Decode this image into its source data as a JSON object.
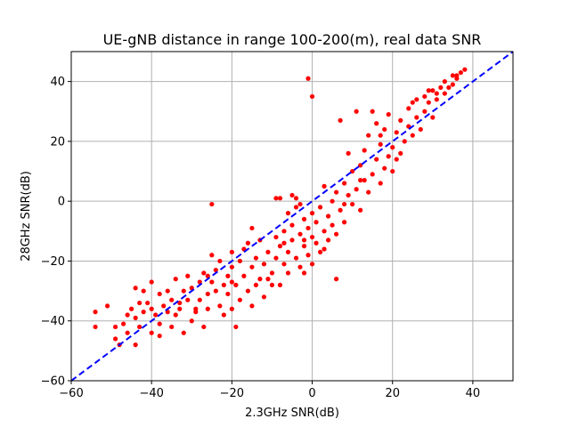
{
  "chart_data": {
    "type": "scatter",
    "title": "UE-gNB distance in range 100-200(m), real data SNR",
    "xlabel": "2.3GHz SNR(dB)",
    "ylabel": "28GHz SNR(dB)",
    "xlim": [
      -60,
      50
    ],
    "ylim": [
      -60,
      50
    ],
    "xticks": [
      -60,
      -40,
      -20,
      0,
      20,
      40
    ],
    "yticks": [
      -60,
      -40,
      -20,
      0,
      20,
      40
    ],
    "grid": true,
    "colors": {
      "points": "#ff0000",
      "reference_line": "#0000ff",
      "grid": "#b0b0b0"
    },
    "reference_line": {
      "style": "dashed",
      "from": [
        -60,
        -60
      ],
      "to": [
        50,
        50
      ]
    },
    "series": [
      {
        "marker": "circle",
        "color": "#ff0000",
        "points": [
          [
            -54,
            -37
          ],
          [
            -54,
            -42
          ],
          [
            -51,
            -35
          ],
          [
            -49,
            -46
          ],
          [
            -49,
            -42
          ],
          [
            -48,
            -48
          ],
          [
            -47,
            -41
          ],
          [
            -46,
            -44
          ],
          [
            -46,
            -38
          ],
          [
            -45,
            -36
          ],
          [
            -44,
            -39
          ],
          [
            -44,
            -48
          ],
          [
            -44,
            -29
          ],
          [
            -43,
            -42
          ],
          [
            -42,
            -37
          ],
          [
            -42,
            -30
          ],
          [
            -41,
            -34
          ],
          [
            -40,
            -44
          ],
          [
            -40,
            -36
          ],
          [
            -40,
            -27
          ],
          [
            -39,
            -38
          ],
          [
            -38,
            -31
          ],
          [
            -38,
            -41
          ],
          [
            -37,
            -35
          ],
          [
            -36,
            -37
          ],
          [
            -36,
            -30
          ],
          [
            -35,
            -42
          ],
          [
            -35,
            -33
          ],
          [
            -34,
            -26
          ],
          [
            -34,
            -38
          ],
          [
            -33,
            -36
          ],
          [
            -32,
            -30
          ],
          [
            -32,
            -44
          ],
          [
            -31,
            -25
          ],
          [
            -31,
            -33
          ],
          [
            -30,
            -29
          ],
          [
            -30,
            -40
          ],
          [
            -29,
            -37
          ],
          [
            -28,
            -27
          ],
          [
            -28,
            -33
          ],
          [
            -27,
            -24
          ],
          [
            -27,
            -42
          ],
          [
            -26,
            -31
          ],
          [
            -26,
            -36
          ],
          [
            -25,
            -27
          ],
          [
            -25,
            -18
          ],
          [
            -25,
            -1
          ],
          [
            -24,
            -30
          ],
          [
            -24,
            -23
          ],
          [
            -23,
            -35
          ],
          [
            -23,
            -20
          ],
          [
            -22,
            -28
          ],
          [
            -22,
            -38
          ],
          [
            -21,
            -25
          ],
          [
            -21,
            -31
          ],
          [
            -20,
            -17
          ],
          [
            -20,
            -22
          ],
          [
            -20,
            -36
          ],
          [
            -19,
            -28
          ],
          [
            -18,
            -20
          ],
          [
            -18,
            -33
          ],
          [
            -17,
            -16
          ],
          [
            -17,
            -25
          ],
          [
            -16,
            -14
          ],
          [
            -16,
            -30
          ],
          [
            -15,
            -22
          ],
          [
            -15,
            -35
          ],
          [
            -14,
            -19
          ],
          [
            -13,
            -26
          ],
          [
            -13,
            -13
          ],
          [
            -12,
            -21
          ],
          [
            -12,
            -32
          ],
          [
            -11,
            -17
          ],
          [
            -10,
            -24
          ],
          [
            -10,
            -28
          ],
          [
            -9,
            -12
          ],
          [
            -9,
            -19
          ],
          [
            -8,
            -15
          ],
          [
            -8,
            -28
          ],
          [
            -8,
            1
          ],
          [
            -7,
            -21
          ],
          [
            -7,
            -10
          ],
          [
            -6,
            -17
          ],
          [
            -6,
            -24
          ],
          [
            -5,
            -8
          ],
          [
            -5,
            -13
          ],
          [
            -4,
            -19
          ],
          [
            -4,
            1
          ],
          [
            -3,
            -11
          ],
          [
            -3,
            -22
          ],
          [
            -2,
            -6
          ],
          [
            -2,
            -15
          ],
          [
            -1,
            -18
          ],
          [
            -1,
            -9
          ],
          [
            0,
            -4
          ],
          [
            0,
            -12
          ],
          [
            0,
            -21
          ],
          [
            0,
            35
          ],
          [
            1,
            -14
          ],
          [
            1,
            -7
          ],
          [
            2,
            -2
          ],
          [
            2,
            -17
          ],
          [
            3,
            -10
          ],
          [
            3,
            5
          ],
          [
            4,
            -5
          ],
          [
            4,
            -13
          ],
          [
            5,
            0
          ],
          [
            5,
            -8
          ],
          [
            6,
            3
          ],
          [
            6,
            -11
          ],
          [
            7,
            -3
          ],
          [
            8,
            6
          ],
          [
            8,
            -7
          ],
          [
            9,
            2
          ],
          [
            9,
            16
          ],
          [
            10,
            -1
          ],
          [
            10,
            10
          ],
          [
            11,
            4
          ],
          [
            12,
            -3
          ],
          [
            12,
            12
          ],
          [
            13,
            7
          ],
          [
            13,
            17
          ],
          [
            14,
            3
          ],
          [
            14,
            22
          ],
          [
            15,
            9
          ],
          [
            16,
            14
          ],
          [
            16,
            26
          ],
          [
            17,
            6
          ],
          [
            17,
            19
          ],
          [
            18,
            11
          ],
          [
            18,
            24
          ],
          [
            19,
            15
          ],
          [
            19,
            29
          ],
          [
            20,
            18
          ],
          [
            20,
            10
          ],
          [
            21,
            23
          ],
          [
            22,
            16
          ],
          [
            22,
            27
          ],
          [
            23,
            20
          ],
          [
            24,
            25
          ],
          [
            24,
            31
          ],
          [
            25,
            22
          ],
          [
            26,
            28
          ],
          [
            26,
            34
          ],
          [
            27,
            24
          ],
          [
            28,
            30
          ],
          [
            28,
            35
          ],
          [
            29,
            33
          ],
          [
            30,
            28
          ],
          [
            30,
            37
          ],
          [
            31,
            34
          ],
          [
            32,
            38
          ],
          [
            33,
            36
          ],
          [
            33,
            40
          ],
          [
            34,
            38
          ],
          [
            35,
            42
          ],
          [
            35,
            39
          ],
          [
            36,
            41
          ],
          [
            37,
            43
          ],
          [
            38,
            44
          ],
          [
            -15,
            -9
          ],
          [
            -29,
            -36
          ],
          [
            -38,
            -45
          ],
          [
            -11,
            -26
          ],
          [
            -3,
            -1
          ],
          [
            -1,
            41
          ],
          [
            7,
            27
          ],
          [
            11,
            30
          ],
          [
            15,
            30
          ],
          [
            6,
            -26
          ],
          [
            -2,
            -24
          ],
          [
            -19,
            -42
          ],
          [
            -43,
            -34
          ],
          [
            -33,
            -34
          ],
          [
            -26,
            -25
          ],
          [
            -20,
            -27
          ],
          [
            -14,
            -28
          ],
          [
            -7,
            -14
          ],
          [
            -2,
            -13
          ],
          [
            3,
            -16
          ],
          [
            8,
            -1
          ],
          [
            12,
            7
          ],
          [
            17,
            22
          ],
          [
            21,
            14
          ],
          [
            25,
            33
          ],
          [
            29,
            37
          ],
          [
            31,
            36
          ],
          [
            36,
            42
          ],
          [
            -9,
            1
          ],
          [
            -6,
            -4
          ],
          [
            -5,
            2
          ],
          [
            -4,
            -2
          ]
        ]
      }
    ]
  }
}
